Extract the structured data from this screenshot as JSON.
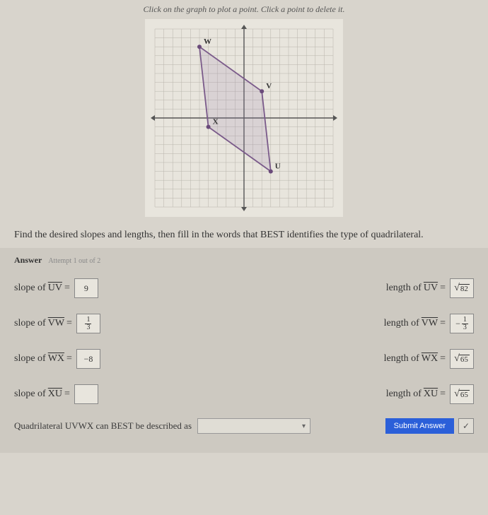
{
  "instruction": "Click on the graph to plot a point. Click a point to delete it.",
  "graph": {
    "range": {
      "xmin": -10,
      "xmax": 10,
      "ymin": -10,
      "ymax": 10
    },
    "axis_step": 1,
    "colors": {
      "grid": "#b8b4ac",
      "axis": "#555555",
      "shape_stroke": "#7a5a8a",
      "shape_fill": "rgba(150,130,170,0.18)",
      "point_fill": "#6a4a7a",
      "label_color": "#333333",
      "bg": "#e8e5dd"
    },
    "points": {
      "W": {
        "x": -5,
        "y": 8,
        "label": "W"
      },
      "V": {
        "x": 2,
        "y": 3,
        "label": "V"
      },
      "U": {
        "x": 3,
        "y": -6,
        "label": "U"
      },
      "X": {
        "x": -4,
        "y": -1,
        "label": "X"
      }
    },
    "polygon_order": [
      "U",
      "V",
      "W",
      "X"
    ]
  },
  "prompt": "Find the desired slopes and lengths, then fill in the words that BEST identifies the type of quadrilateral.",
  "answer_label": "Answer",
  "attempt_text": "Attempt 1 out of 2",
  "rows": {
    "uv": {
      "slope_label_pre": "slope of ",
      "slope_seg": "UV",
      "slope_eq": " = ",
      "slope_val": "9",
      "len_label_pre": "length of ",
      "len_seg": "UV",
      "len_eq": " = ",
      "len_radicand": "82"
    },
    "vw": {
      "slope_label_pre": "slope of ",
      "slope_seg": "VW",
      "slope_eq": " = ",
      "slope_frac_num": "1",
      "slope_frac_den": "3",
      "len_label_pre": "length of ",
      "len_seg": "VW",
      "len_eq": " = ",
      "len_neg": "−",
      "len_frac_num": "1",
      "len_frac_den": "3"
    },
    "wx": {
      "slope_label_pre": "slope of ",
      "slope_seg": "WX",
      "slope_eq": " = ",
      "slope_val": "−8",
      "len_label_pre": "length of ",
      "len_seg": "WX",
      "len_eq": " = ",
      "len_radicand": "65"
    },
    "xu": {
      "slope_label_pre": "slope of ",
      "slope_seg": "XU",
      "slope_eq": " = ",
      "slope_val": "",
      "len_label_pre": "length of ",
      "len_seg": "XU",
      "len_eq": " = ",
      "len_radicand": "65"
    }
  },
  "bottom": {
    "desc_text": "Quadrilateral UVWX can BEST be described as",
    "dropdown_caret": "▾",
    "submit_label": "Submit Answer",
    "check_mark": "✓"
  }
}
